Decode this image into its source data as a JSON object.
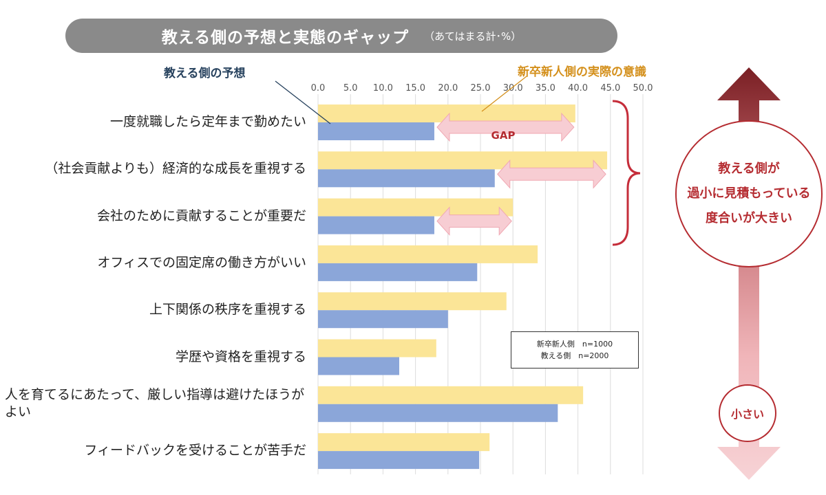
{
  "header": {
    "title": "教える側の予想と実態のギャップ",
    "note": "（あてはまる計･%）"
  },
  "callouts": {
    "expected_label": "教える側の予想",
    "actual_label": "新卒新人側の実際の意識",
    "gap_label": "GAP",
    "big_circle_lines": [
      "教える側が",
      "過小に見積もっている",
      "度合いが大きい"
    ],
    "small_circle": "小さい"
  },
  "sample_box": {
    "line1": "新卒新人側　n=1000",
    "line2": "教える側　n=2000"
  },
  "colors": {
    "actual_bar": "#fbe597",
    "expected_bar": "#8ba6d9",
    "gap_arrow": "#f7cdd3",
    "accent_red": "#b52c31",
    "banner": "#8a8a8a"
  },
  "chart_data": {
    "type": "bar",
    "orientation": "horizontal",
    "xlim": [
      0,
      50
    ],
    "x_ticks": [
      "0.0",
      "5.0",
      "10.0",
      "15.0",
      "20.0",
      "25.0",
      "30.0",
      "35.0",
      "40.0",
      "45.0",
      "50.0"
    ],
    "grid": true,
    "categories": [
      "一度就職したら定年まで勤めたい",
      "（社会貢献よりも）経済的な成長を重視する",
      "会社のために貢献することが重要だ",
      "オフィスでの固定席の働き方がいい",
      "上下関係の秩序を重視する",
      "学歴や資格を重視する",
      "人を育てるにあたって、厳しい指導は避けたほうがよい",
      "フィードバックを受けることが苦手だ"
    ],
    "series": [
      {
        "name": "新卒新人側の実際の意識",
        "values": [
          39.6,
          44.5,
          30.0,
          33.8,
          29.0,
          18.2,
          40.8,
          26.4
        ]
      },
      {
        "name": "教える側の予想",
        "values": [
          17.9,
          27.2,
          17.9,
          24.5,
          20.0,
          12.5,
          36.9,
          24.8
        ]
      }
    ],
    "gap_rows": [
      0,
      1,
      2
    ]
  }
}
